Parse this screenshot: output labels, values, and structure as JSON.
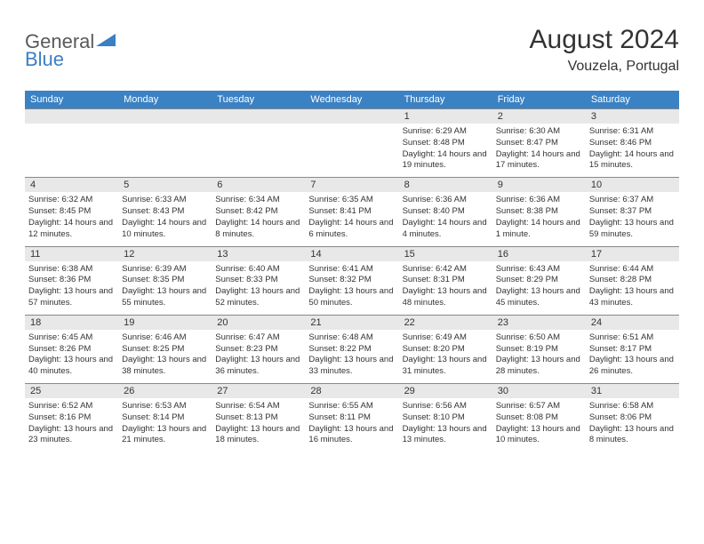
{
  "logo": {
    "general": "General",
    "blue": "Blue"
  },
  "header": {
    "title": "August 2024",
    "location": "Vouzela, Portugal"
  },
  "colors": {
    "header_bg": "#3b82c4",
    "header_fg": "#ffffff",
    "day_num_bg": "#e8e8e8",
    "border": "#888888",
    "text": "#333333",
    "logo_general": "#5a5a5a",
    "logo_blue": "#3b7fc4"
  },
  "days_of_week": [
    "Sunday",
    "Monday",
    "Tuesday",
    "Wednesday",
    "Thursday",
    "Friday",
    "Saturday"
  ],
  "weeks": [
    [
      null,
      null,
      null,
      null,
      {
        "num": "1",
        "sunrise": "6:29 AM",
        "sunset": "8:48 PM",
        "daylight": "14 hours and 19 minutes."
      },
      {
        "num": "2",
        "sunrise": "6:30 AM",
        "sunset": "8:47 PM",
        "daylight": "14 hours and 17 minutes."
      },
      {
        "num": "3",
        "sunrise": "6:31 AM",
        "sunset": "8:46 PM",
        "daylight": "14 hours and 15 minutes."
      }
    ],
    [
      {
        "num": "4",
        "sunrise": "6:32 AM",
        "sunset": "8:45 PM",
        "daylight": "14 hours and 12 minutes."
      },
      {
        "num": "5",
        "sunrise": "6:33 AM",
        "sunset": "8:43 PM",
        "daylight": "14 hours and 10 minutes."
      },
      {
        "num": "6",
        "sunrise": "6:34 AM",
        "sunset": "8:42 PM",
        "daylight": "14 hours and 8 minutes."
      },
      {
        "num": "7",
        "sunrise": "6:35 AM",
        "sunset": "8:41 PM",
        "daylight": "14 hours and 6 minutes."
      },
      {
        "num": "8",
        "sunrise": "6:36 AM",
        "sunset": "8:40 PM",
        "daylight": "14 hours and 4 minutes."
      },
      {
        "num": "9",
        "sunrise": "6:36 AM",
        "sunset": "8:38 PM",
        "daylight": "14 hours and 1 minute."
      },
      {
        "num": "10",
        "sunrise": "6:37 AM",
        "sunset": "8:37 PM",
        "daylight": "13 hours and 59 minutes."
      }
    ],
    [
      {
        "num": "11",
        "sunrise": "6:38 AM",
        "sunset": "8:36 PM",
        "daylight": "13 hours and 57 minutes."
      },
      {
        "num": "12",
        "sunrise": "6:39 AM",
        "sunset": "8:35 PM",
        "daylight": "13 hours and 55 minutes."
      },
      {
        "num": "13",
        "sunrise": "6:40 AM",
        "sunset": "8:33 PM",
        "daylight": "13 hours and 52 minutes."
      },
      {
        "num": "14",
        "sunrise": "6:41 AM",
        "sunset": "8:32 PM",
        "daylight": "13 hours and 50 minutes."
      },
      {
        "num": "15",
        "sunrise": "6:42 AM",
        "sunset": "8:31 PM",
        "daylight": "13 hours and 48 minutes."
      },
      {
        "num": "16",
        "sunrise": "6:43 AM",
        "sunset": "8:29 PM",
        "daylight": "13 hours and 45 minutes."
      },
      {
        "num": "17",
        "sunrise": "6:44 AM",
        "sunset": "8:28 PM",
        "daylight": "13 hours and 43 minutes."
      }
    ],
    [
      {
        "num": "18",
        "sunrise": "6:45 AM",
        "sunset": "8:26 PM",
        "daylight": "13 hours and 40 minutes."
      },
      {
        "num": "19",
        "sunrise": "6:46 AM",
        "sunset": "8:25 PM",
        "daylight": "13 hours and 38 minutes."
      },
      {
        "num": "20",
        "sunrise": "6:47 AM",
        "sunset": "8:23 PM",
        "daylight": "13 hours and 36 minutes."
      },
      {
        "num": "21",
        "sunrise": "6:48 AM",
        "sunset": "8:22 PM",
        "daylight": "13 hours and 33 minutes."
      },
      {
        "num": "22",
        "sunrise": "6:49 AM",
        "sunset": "8:20 PM",
        "daylight": "13 hours and 31 minutes."
      },
      {
        "num": "23",
        "sunrise": "6:50 AM",
        "sunset": "8:19 PM",
        "daylight": "13 hours and 28 minutes."
      },
      {
        "num": "24",
        "sunrise": "6:51 AM",
        "sunset": "8:17 PM",
        "daylight": "13 hours and 26 minutes."
      }
    ],
    [
      {
        "num": "25",
        "sunrise": "6:52 AM",
        "sunset": "8:16 PM",
        "daylight": "13 hours and 23 minutes."
      },
      {
        "num": "26",
        "sunrise": "6:53 AM",
        "sunset": "8:14 PM",
        "daylight": "13 hours and 21 minutes."
      },
      {
        "num": "27",
        "sunrise": "6:54 AM",
        "sunset": "8:13 PM",
        "daylight": "13 hours and 18 minutes."
      },
      {
        "num": "28",
        "sunrise": "6:55 AM",
        "sunset": "8:11 PM",
        "daylight": "13 hours and 16 minutes."
      },
      {
        "num": "29",
        "sunrise": "6:56 AM",
        "sunset": "8:10 PM",
        "daylight": "13 hours and 13 minutes."
      },
      {
        "num": "30",
        "sunrise": "6:57 AM",
        "sunset": "8:08 PM",
        "daylight": "13 hours and 10 minutes."
      },
      {
        "num": "31",
        "sunrise": "6:58 AM",
        "sunset": "8:06 PM",
        "daylight": "13 hours and 8 minutes."
      }
    ]
  ],
  "labels": {
    "sunrise": "Sunrise: ",
    "sunset": "Sunset: ",
    "daylight": "Daylight: "
  }
}
